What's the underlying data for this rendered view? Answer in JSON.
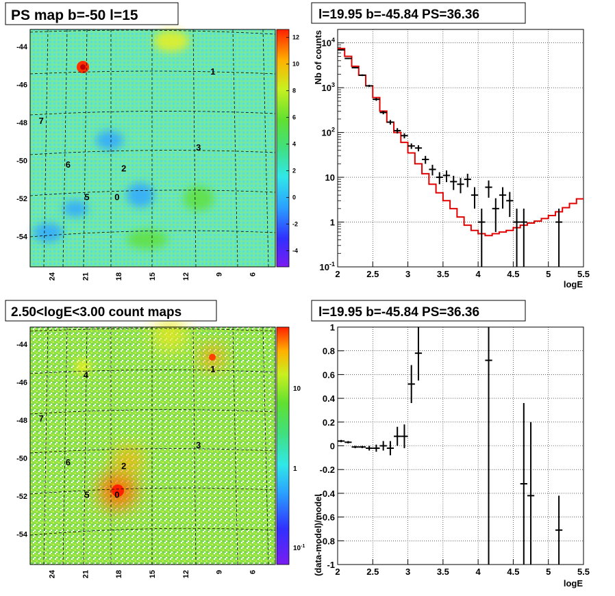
{
  "colors": {
    "model": "#e00000",
    "data": "#000000",
    "grid": "#000000"
  },
  "panels": {
    "ps_map": {
      "title": "PS map b=-50 l=15",
      "y_ticks": [
        "-44",
        "-46",
        "-48",
        "-50",
        "-52",
        "-54"
      ],
      "x_ticks": [
        "24",
        "21",
        "18",
        "15",
        "12",
        "9",
        "6"
      ],
      "colorbar_ticks": [
        "12",
        "10",
        "8",
        "6",
        "4",
        "2",
        "0",
        "-2",
        "-4"
      ],
      "sources": [
        {
          "id": "4",
          "l": 21.0,
          "b": -45.6,
          "label": ""
        },
        {
          "id": "1",
          "l": 9.6,
          "b": -45.3,
          "label": "1"
        },
        {
          "id": "7",
          "l": 25.0,
          "b": -47.9,
          "label": "7"
        },
        {
          "id": "3",
          "l": 10.9,
          "b": -49.3,
          "label": "3"
        },
        {
          "id": "6",
          "l": 22.6,
          "b": -50.2,
          "label": "6"
        },
        {
          "id": "2",
          "l": 17.6,
          "b": -50.4,
          "label": "2"
        },
        {
          "id": "5",
          "l": 20.9,
          "b": -51.9,
          "label": "5"
        },
        {
          "id": "0",
          "l": 18.2,
          "b": -51.9,
          "label": "0"
        }
      ]
    },
    "count_map": {
      "title": "2.50<logE<3.00 count maps",
      "y_ticks": [
        "-44",
        "-46",
        "-48",
        "-50",
        "-52",
        "-54"
      ],
      "x_ticks": [
        "24",
        "21",
        "18",
        "15",
        "12",
        "9",
        "6"
      ],
      "colorbar_ticks": [
        "10",
        "1",
        "10"
      ],
      "colorbar_tick_sup": "-1",
      "sources": [
        {
          "id": "1",
          "l": 9.6,
          "b": -45.3,
          "label": "1"
        },
        {
          "id": "4",
          "l": 21.0,
          "b": -45.6,
          "label": "4"
        },
        {
          "id": "7",
          "l": 25.0,
          "b": -47.9,
          "label": "7"
        },
        {
          "id": "3",
          "l": 10.9,
          "b": -49.3,
          "label": "3"
        },
        {
          "id": "6",
          "l": 22.6,
          "b": -50.2,
          "label": "6"
        },
        {
          "id": "2",
          "l": 17.6,
          "b": -50.4,
          "label": "2"
        },
        {
          "id": "5",
          "l": 20.9,
          "b": -51.9,
          "label": "5"
        },
        {
          "id": "0",
          "l": 18.2,
          "b": -51.9,
          "label": "0"
        }
      ]
    }
  },
  "chart_data": [
    {
      "type": "line",
      "title": "l=19.95 b=-45.84 PS=36.36",
      "xlabel": "logE",
      "ylabel": "Nb of counts",
      "xlim": [
        2,
        5.5
      ],
      "ylim": [
        0.1,
        20000
      ],
      "log_y": true,
      "grid": true,
      "x_ticks": [
        "2",
        "2.5",
        "3",
        "3.5",
        "4",
        "4.5",
        "5",
        "5.5"
      ],
      "y_ticks": [
        {
          "base": "10",
          "exp": "-1",
          "value": 0.1
        },
        {
          "base": "1",
          "exp": "",
          "value": 1
        },
        {
          "base": "10",
          "exp": "",
          "value": 10
        },
        {
          "base": "10",
          "exp": "2",
          "value": 100
        },
        {
          "base": "10",
          "exp": "3",
          "value": 1000
        },
        {
          "base": "10",
          "exp": "4",
          "value": 10000
        }
      ],
      "bin_edges": [
        2.0,
        2.1,
        2.2,
        2.3,
        2.4,
        2.5,
        2.6,
        2.7,
        2.8,
        2.9,
        3.0,
        3.1,
        3.2,
        3.3,
        3.4,
        3.5,
        3.6,
        3.7,
        3.8,
        3.9,
        4.0,
        4.1,
        4.2,
        4.3,
        4.4,
        4.5,
        4.6,
        4.7,
        4.8,
        4.9,
        5.0,
        5.1,
        5.2,
        5.3,
        5.4,
        5.5
      ],
      "series": [
        {
          "name": "model",
          "kind": "histogram",
          "values": [
            7500,
            5000,
            3000,
            1900,
            1100,
            600,
            300,
            170,
            100,
            60,
            35,
            20,
            12,
            7,
            4.5,
            3,
            2,
            1.3,
            0.85,
            0.65,
            0.55,
            0.5,
            0.55,
            0.6,
            0.65,
            0.75,
            0.85,
            0.95,
            1.05,
            1.2,
            1.4,
            1.7,
            2.1,
            2.6,
            3.3
          ]
        },
        {
          "name": "data",
          "kind": "errorbar",
          "points": [
            {
              "x": 2.05,
              "y": 7000,
              "lo": 6800,
              "hi": 7200
            },
            {
              "x": 2.15,
              "y": 4500,
              "lo": 4350,
              "hi": 4650
            },
            {
              "x": 2.25,
              "y": 2800,
              "lo": 2700,
              "hi": 2900
            },
            {
              "x": 2.35,
              "y": 1900,
              "lo": 1820,
              "hi": 1980
            },
            {
              "x": 2.45,
              "y": 1100,
              "lo": 1040,
              "hi": 1160
            },
            {
              "x": 2.55,
              "y": 550,
              "lo": 510,
              "hi": 590
            },
            {
              "x": 2.65,
              "y": 280,
              "lo": 255,
              "hi": 305
            },
            {
              "x": 2.75,
              "y": 170,
              "lo": 150,
              "hi": 190
            },
            {
              "x": 2.85,
              "y": 110,
              "lo": 95,
              "hi": 125
            },
            {
              "x": 2.95,
              "y": 85,
              "lo": 74,
              "hi": 96
            },
            {
              "x": 3.05,
              "y": 50,
              "lo": 43,
              "hi": 57
            },
            {
              "x": 3.15,
              "y": 45,
              "lo": 38,
              "hi": 52
            },
            {
              "x": 3.25,
              "y": 25,
              "lo": 20,
              "hi": 30
            },
            {
              "x": 3.35,
              "y": 15,
              "lo": 11,
              "hi": 19
            },
            {
              "x": 3.45,
              "y": 10,
              "lo": 7,
              "hi": 13
            },
            {
              "x": 3.55,
              "y": 11,
              "lo": 7.8,
              "hi": 14.2
            },
            {
              "x": 3.65,
              "y": 8,
              "lo": 5.2,
              "hi": 10.8
            },
            {
              "x": 3.75,
              "y": 7,
              "lo": 4.4,
              "hi": 9.6
            },
            {
              "x": 3.85,
              "y": 9,
              "lo": 6,
              "hi": 12
            },
            {
              "x": 3.95,
              "y": 4,
              "lo": 2,
              "hi": 6
            },
            {
              "x": 4.05,
              "y": 1,
              "lo": 0.1,
              "hi": 2
            },
            {
              "x": 4.15,
              "y": 6,
              "lo": 3.5,
              "hi": 8.5
            },
            {
              "x": 4.25,
              "y": 2,
              "lo": 0.6,
              "hi": 3.4
            },
            {
              "x": 4.35,
              "y": 4,
              "lo": 2,
              "hi": 6
            },
            {
              "x": 4.45,
              "y": 3,
              "lo": 1.3,
              "hi": 4.7
            },
            {
              "x": 4.55,
              "y": 1,
              "lo": 0.1,
              "hi": 2
            },
            {
              "x": 4.65,
              "y": 1,
              "lo": 0.1,
              "hi": 2
            },
            {
              "x": 5.15,
              "y": 1,
              "lo": 0.1,
              "hi": 2
            }
          ]
        }
      ]
    },
    {
      "type": "scatter",
      "title": "l=19.95 b=-45.84 PS=36.36",
      "xlabel": "logE",
      "ylabel": "(data-model)/model",
      "xlim": [
        2,
        5.5
      ],
      "ylim": [
        -1,
        1
      ],
      "grid": true,
      "x_ticks": [
        "2",
        "2.5",
        "3",
        "3.5",
        "4",
        "4.5",
        "5",
        "5.5"
      ],
      "y_ticks": [
        "-1",
        "-0.8",
        "-0.6",
        "-0.4",
        "-0.2",
        "0",
        "0.2",
        "0.4",
        "0.6",
        "0.8",
        "1"
      ],
      "points": [
        {
          "x": 2.05,
          "y": 0.04,
          "lo": 0.03,
          "hi": 0.05
        },
        {
          "x": 2.15,
          "y": 0.03,
          "lo": 0.02,
          "hi": 0.04
        },
        {
          "x": 2.25,
          "y": -0.01,
          "lo": -0.02,
          "hi": 0.0
        },
        {
          "x": 2.35,
          "y": -0.01,
          "lo": -0.02,
          "hi": 0.0
        },
        {
          "x": 2.45,
          "y": -0.02,
          "lo": -0.04,
          "hi": 0.0
        },
        {
          "x": 2.55,
          "y": -0.02,
          "lo": -0.05,
          "hi": 0.01
        },
        {
          "x": 2.65,
          "y": 0.0,
          "lo": -0.04,
          "hi": 0.04
        },
        {
          "x": 2.75,
          "y": -0.02,
          "lo": -0.08,
          "hi": 0.04
        },
        {
          "x": 2.85,
          "y": 0.08,
          "lo": -0.0,
          "hi": 0.16
        },
        {
          "x": 2.95,
          "y": 0.08,
          "lo": -0.02,
          "hi": 0.18
        },
        {
          "x": 3.05,
          "y": 0.52,
          "lo": 0.36,
          "hi": 0.68
        },
        {
          "x": 3.15,
          "y": 0.78,
          "lo": 0.55,
          "hi": 1.0
        },
        {
          "x": 4.15,
          "y": 0.72,
          "lo": -1.0,
          "hi": 1.0
        },
        {
          "x": 4.65,
          "y": -0.32,
          "lo": -1.0,
          "hi": 0.36
        },
        {
          "x": 4.75,
          "y": -0.42,
          "lo": -1.0,
          "hi": 0.2
        },
        {
          "x": 5.15,
          "y": -0.71,
          "lo": -1.0,
          "hi": -0.42
        }
      ]
    }
  ]
}
